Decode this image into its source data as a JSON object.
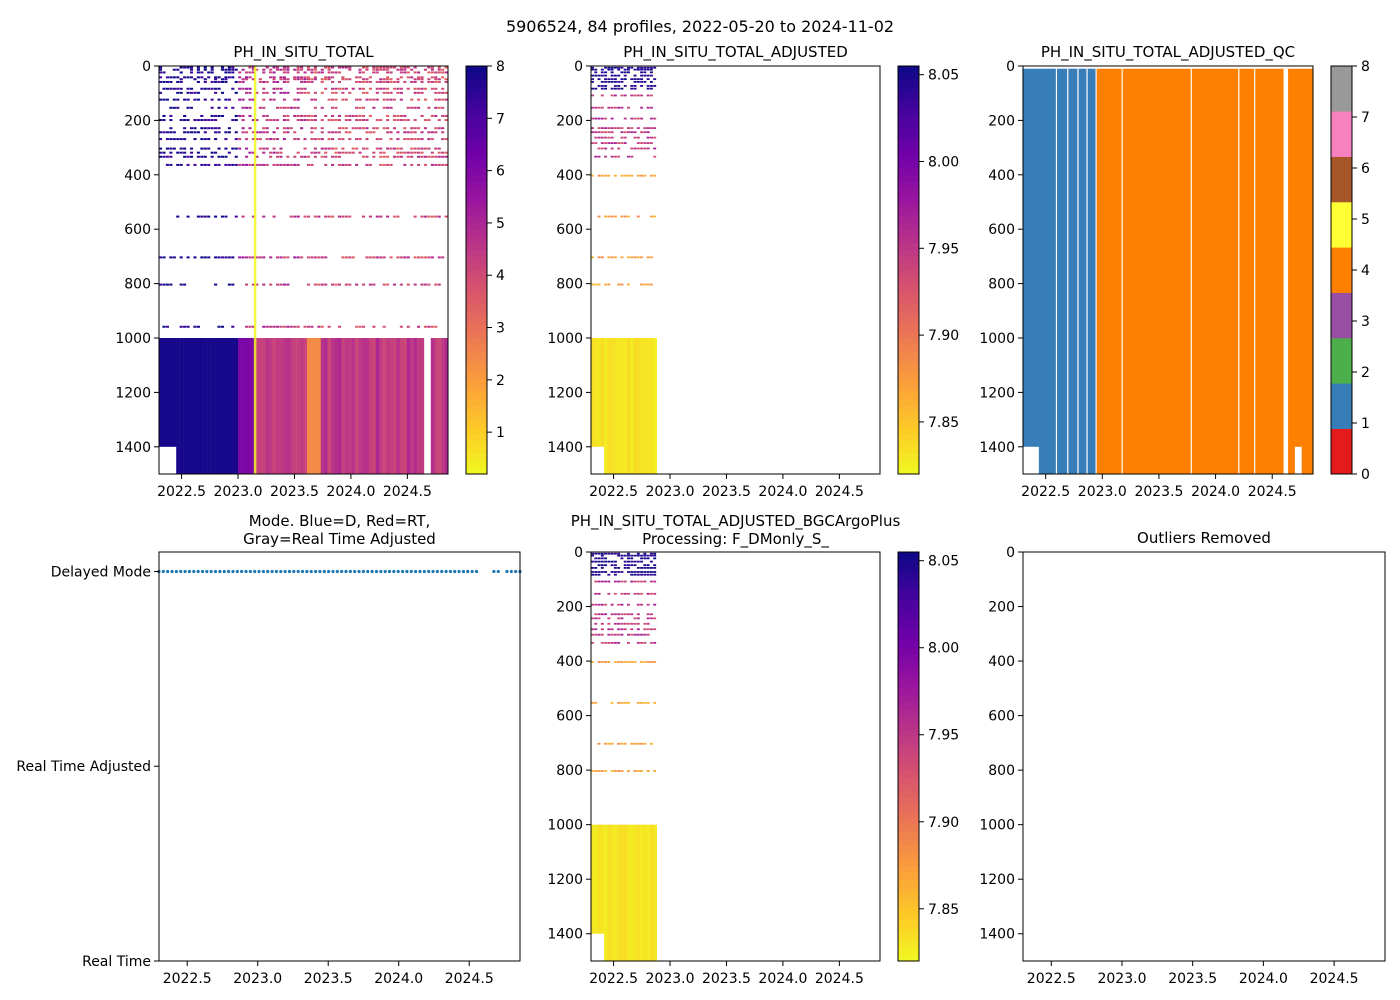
{
  "figure_title": "5906524, 84 profiles, 2022-05-20 to 2024-11-02",
  "colors": {
    "plasma": [
      "#f0f921",
      "#fdca26",
      "#fb9f3a",
      "#ed7953",
      "#d8576b",
      "#bd3786",
      "#9c179e",
      "#7201a8",
      "#46039f",
      "#0d0887"
    ],
    "qc": [
      "#e41a1c",
      "#377eb8",
      "#4daf4a",
      "#984ea3",
      "#ff7f00",
      "#ffff33",
      "#a65628",
      "#f781bf",
      "#999999"
    ],
    "mode_blue": "#1f77b4"
  },
  "chart_data": [
    {
      "type": "heatmap",
      "title": "PH_IN_SITU_TOTAL",
      "xlabel": "",
      "ylabel": "",
      "xlim": [
        2022.3,
        2024.86
      ],
      "ylim": [
        1500,
        0
      ],
      "xticks": [
        2022.5,
        2023.0,
        2023.5,
        2024.0,
        2024.5
      ],
      "xtick_labels": [
        "2022.5",
        "2023.0",
        "2023.5",
        "2024.0",
        "2024.5"
      ],
      "yticks": [
        0,
        200,
        400,
        600,
        800,
        1000,
        1200,
        1400
      ],
      "ytick_labels": [
        "0",
        "200",
        "400",
        "600",
        "800",
        "1000",
        "1200",
        "1400"
      ],
      "colorbar": {
        "min": 0.2,
        "max": 8,
        "cmap": "plasma",
        "ticks": [
          1,
          2,
          3,
          4,
          5,
          6,
          7,
          8
        ],
        "tick_labels": [
          "1",
          "2",
          "3",
          "4",
          "5",
          "6",
          "7",
          "8"
        ]
      }
    },
    {
      "type": "heatmap",
      "title": "PH_IN_SITU_TOTAL_ADJUSTED",
      "xlabel": "",
      "ylabel": "",
      "xlim": [
        2022.3,
        2024.86
      ],
      "ylim": [
        1500,
        0
      ],
      "xticks": [
        2022.5,
        2023.0,
        2023.5,
        2024.0,
        2024.5
      ],
      "xtick_labels": [
        "2022.5",
        "2023.0",
        "2023.5",
        "2024.0",
        "2024.5"
      ],
      "yticks": [
        0,
        200,
        400,
        600,
        800,
        1000,
        1200,
        1400
      ],
      "ytick_labels": [
        "0",
        "200",
        "400",
        "600",
        "800",
        "1000",
        "1200",
        "1400"
      ],
      "data_x_range": [
        2022.3,
        2022.88
      ],
      "colorbar": {
        "min": 7.82,
        "max": 8.055,
        "cmap": "plasma",
        "ticks": [
          7.85,
          7.9,
          7.95,
          8.0,
          8.05
        ],
        "tick_labels": [
          "7.85",
          "7.90",
          "7.95",
          "8.00",
          "8.05"
        ]
      }
    },
    {
      "type": "heatmap",
      "title": "PH_IN_SITU_TOTAL_ADJUSTED_QC",
      "xlabel": "",
      "ylabel": "",
      "xlim": [
        2022.3,
        2024.86
      ],
      "ylim": [
        1500,
        0
      ],
      "xticks": [
        2022.5,
        2023.0,
        2023.5,
        2024.0,
        2024.5
      ],
      "xtick_labels": [
        "2022.5",
        "2023.0",
        "2023.5",
        "2024.0",
        "2024.5"
      ],
      "yticks": [
        0,
        200,
        400,
        600,
        800,
        1000,
        1200,
        1400
      ],
      "ytick_labels": [
        "0",
        "200",
        "400",
        "600",
        "800",
        "1000",
        "1200",
        "1400"
      ],
      "qc_by_period": [
        {
          "from": 2022.3,
          "to": 2022.94,
          "qc": 1
        },
        {
          "from": 2022.94,
          "to": 2024.86,
          "qc": 4
        }
      ],
      "colorbar": {
        "min": 0,
        "max": 8,
        "cmap": "qc",
        "ticks": [
          0,
          1,
          2,
          3,
          4,
          5,
          6,
          7,
          8
        ],
        "tick_labels": [
          "0",
          "1",
          "2",
          "3",
          "4",
          "5",
          "6",
          "7",
          "8"
        ]
      }
    },
    {
      "type": "scatter",
      "title": "Mode. Blue=D, Red=RT,",
      "title2": "Gray=Real Time Adjusted",
      "xlabel": "",
      "ylabel": "",
      "xlim": [
        2022.3,
        2024.86
      ],
      "xticks": [
        2022.5,
        2023.0,
        2023.5,
        2024.0,
        2024.5
      ],
      "xtick_labels": [
        "2022.5",
        "2023.0",
        "2023.5",
        "2024.0",
        "2024.5"
      ],
      "categories": [
        "Real Time",
        "Real Time Adjusted",
        "Delayed Mode"
      ],
      "category_positions": [
        0,
        1,
        2
      ],
      "ylim": [
        0,
        2.1
      ],
      "series": [
        {
          "name": "Delayed Mode",
          "category": 2,
          "x_from": 2022.3,
          "x_to": 2024.86,
          "count": 84,
          "gaps": [
            [
              2024.58,
              2024.65
            ],
            [
              2024.72,
              2024.75
            ]
          ]
        }
      ]
    },
    {
      "type": "heatmap",
      "title": "PH_IN_SITU_TOTAL_ADJUSTED_BGCArgoPlus",
      "title2": "Processing: F_DMonly_S_",
      "xlabel": "",
      "ylabel": "",
      "xlim": [
        2022.3,
        2024.86
      ],
      "ylim": [
        1500,
        0
      ],
      "xticks": [
        2022.5,
        2023.0,
        2023.5,
        2024.0,
        2024.5
      ],
      "xtick_labels": [
        "2022.5",
        "2023.0",
        "2023.5",
        "2024.0",
        "2024.5"
      ],
      "yticks": [
        0,
        200,
        400,
        600,
        800,
        1000,
        1200,
        1400
      ],
      "ytick_labels": [
        "0",
        "200",
        "400",
        "600",
        "800",
        "1000",
        "1200",
        "1400"
      ],
      "data_x_range": [
        2022.3,
        2022.88
      ],
      "colorbar": {
        "min": 7.82,
        "max": 8.055,
        "cmap": "plasma",
        "ticks": [
          7.85,
          7.9,
          7.95,
          8.0,
          8.05
        ],
        "tick_labels": [
          "7.85",
          "7.90",
          "7.95",
          "8.00",
          "8.05"
        ]
      }
    },
    {
      "type": "heatmap",
      "title": "Outliers Removed",
      "xlabel": "",
      "ylabel": "",
      "xlim": [
        2022.3,
        2024.86
      ],
      "ylim": [
        1500,
        0
      ],
      "xticks": [
        2022.5,
        2023.0,
        2023.5,
        2024.0,
        2024.5
      ],
      "xtick_labels": [
        "2022.5",
        "2023.0",
        "2023.5",
        "2024.0",
        "2024.5"
      ],
      "yticks": [
        0,
        200,
        400,
        600,
        800,
        1000,
        1200,
        1400
      ],
      "ytick_labels": [
        "0",
        "200",
        "400",
        "600",
        "800",
        "1000",
        "1200",
        "1400"
      ]
    }
  ]
}
